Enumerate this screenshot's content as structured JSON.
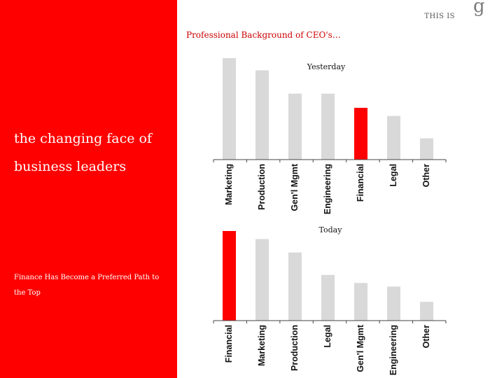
{
  "slide": {
    "title": "Professional Background of CEO's…",
    "headline": "the changing face of business leaders",
    "subtext": "Finance Has Become a Preferred Path to the Top",
    "tagline": "THIS IS",
    "logo": "g"
  },
  "colors": {
    "left_panel": "#ff0000",
    "highlight_bar": "#ff0000",
    "default_bar": "#d9d9d9",
    "axis": "#444444"
  },
  "chart_data": [
    {
      "type": "bar",
      "title": "Yesterday",
      "categories": [
        "Marketing",
        "Production",
        "Gen'l Mgmt",
        "Engineering",
        "Financial",
        "Legal",
        "Other"
      ],
      "values": [
        100,
        88,
        65,
        65,
        51,
        43,
        21
      ],
      "highlight": "Financial",
      "ylim": [
        0,
        100
      ],
      "grid": false,
      "legend": "none"
    },
    {
      "type": "bar",
      "title": "Today",
      "categories": [
        "Financial",
        "Marketing",
        "Production",
        "Legal",
        "Gen'l Mgmt",
        "Engineering",
        "Other"
      ],
      "values": [
        100,
        91,
        76,
        51,
        42,
        38,
        21
      ],
      "highlight": "Financial",
      "ylim": [
        0,
        100
      ],
      "grid": false,
      "legend": "none"
    }
  ]
}
